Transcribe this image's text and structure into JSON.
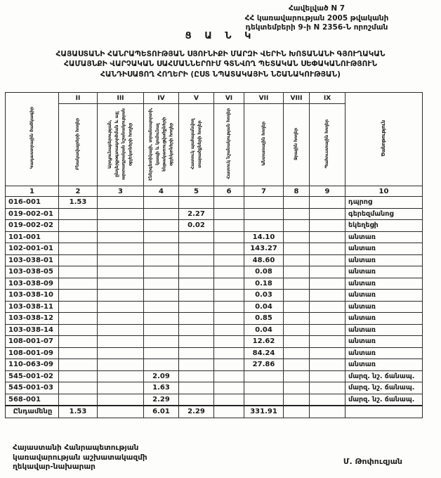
{
  "doc": {
    "appendix_lines": [
      "Հավելված N 7",
      "ՀՀ կառավարության 2005 թվականի",
      "դեկտեմբերի 9-ի N 2356-Ն որոշման"
    ],
    "title": "Ց Ա Ն Կ",
    "subtitle_lines": [
      "ՀԱՅԱՍՏԱՆԻ ՀԱՆՐԱՊԵՏՈՒԹՅԱՆ ՍՅՈՒՆԻՔԻ ՄԱՐԶԻ ՎԵՐԻՆ ԽՈՏԱՆԱՆԻ ԳՅՈՒՂԱԿԱՆ",
      "ՀԱՄԱՅՆՔԻ ՎԱՐՉԱԿԱՆ ՍԱՀՄԱՆՆԵՐՈՒՄ ԳՏՆՎՈՂ ՊԵՏԱԿԱՆ ՍԵՓԱԿԱՆՈՒԹՅՈՒՆ",
      "ՀԱՆԴԻՍԱՑՈՂ ՀՈՂԵՐԻ  (ԸՍՏ ՆՊԱՏԱԿԱՅԻՆ ՆՇԱՆԱԿՈՒԹՅԱՆ)"
    ]
  },
  "table": {
    "col1_header": "Կադաստրային ծածկագիր",
    "col10_header": "Ծանոթություն",
    "roman": [
      "II",
      "III",
      "IV",
      "V",
      "VI",
      "VII",
      "VIII",
      "IX"
    ],
    "vheaders": [
      "Բնակավայրերի հողեր",
      "Արդյունաբերության, ընդերքօգտագործման և այլ արտադրական նշանակության օբյեկտների հողեր",
      "Էներգետիկայի, տրանսպորտի, կապի և կոմունալ ենթակառուցվածքների օբյեկտների հողեր",
      "Հատուկ պահպանվող տարածքների հողեր",
      "Հատուկ նշանակության հողեր",
      "Անտառային հողեր",
      "Ջրային հողեր",
      "Պահուստային հողեր"
    ],
    "numbers": [
      "1",
      "2",
      "3",
      "4",
      "5",
      "6",
      "7",
      "8",
      "9",
      "10"
    ],
    "rows": [
      [
        "016-001",
        "1.53",
        "",
        "",
        "",
        "",
        "",
        "",
        "",
        "դպրոց"
      ],
      [
        "019-002-01",
        "",
        "",
        "",
        "2.27",
        "",
        "",
        "",
        "",
        "գերեզմանոց"
      ],
      [
        "019-002-02",
        "",
        "",
        "",
        "0.02",
        "",
        "",
        "",
        "",
        "եկեղեցի"
      ],
      [
        "101-001",
        "",
        "",
        "",
        "",
        "",
        "14.10",
        "",
        "",
        "անտառ"
      ],
      [
        "102-001-01",
        "",
        "",
        "",
        "",
        "",
        "143.27",
        "",
        "",
        "անտառ"
      ],
      [
        "103-038-01",
        "",
        "",
        "",
        "",
        "",
        "48.60",
        "",
        "",
        "անտառ"
      ],
      [
        "103-038-05",
        "",
        "",
        "",
        "",
        "",
        "0.08",
        "",
        "",
        "անտառ"
      ],
      [
        "103-038-09",
        "",
        "",
        "",
        "",
        "",
        "0.18",
        "",
        "",
        "անտառ"
      ],
      [
        "103-038-10",
        "",
        "",
        "",
        "",
        "",
        "0.03",
        "",
        "",
        "անտառ"
      ],
      [
        "103-038-11",
        "",
        "",
        "",
        "",
        "",
        "0.04",
        "",
        "",
        "անտառ"
      ],
      [
        "103-038-12",
        "",
        "",
        "",
        "",
        "",
        "0.85",
        "",
        "",
        "անտառ"
      ],
      [
        "103-038-14",
        "",
        "",
        "",
        "",
        "",
        "0.04",
        "",
        "",
        "անտառ"
      ],
      [
        "108-001-07",
        "",
        "",
        "",
        "",
        "",
        "12.62",
        "",
        "",
        "անտառ"
      ],
      [
        "108-001-09",
        "",
        "",
        "",
        "",
        "",
        "84.24",
        "",
        "",
        "անտառ"
      ],
      [
        "110-063-09",
        "",
        "",
        "",
        "",
        "",
        "27.86",
        "",
        "",
        "անտառ"
      ],
      [
        "545-001-02",
        "",
        "",
        "2.09",
        "",
        "",
        "",
        "",
        "",
        "մարզ. նշ. ճանապ."
      ],
      [
        "545-001-03",
        "",
        "",
        "1.63",
        "",
        "",
        "",
        "",
        "",
        "մարզ. նշ. ճանապ."
      ],
      [
        "568-001",
        "",
        "",
        "2.29",
        "",
        "",
        "",
        "",
        "",
        "մարզ. նշ. ճանապ."
      ]
    ],
    "total_row": [
      "Ընդամենը",
      "1.53",
      "",
      "6.01",
      "2.29",
      "",
      "331.91",
      "",
      "",
      ""
    ]
  },
  "footer": {
    "left_lines": [
      "Հայաստանի Հանրապետության",
      "կառավարության աշխատակազմի",
      "ղեկավար-նախարար"
    ],
    "signature": "Մ. Թոփուզյան"
  }
}
